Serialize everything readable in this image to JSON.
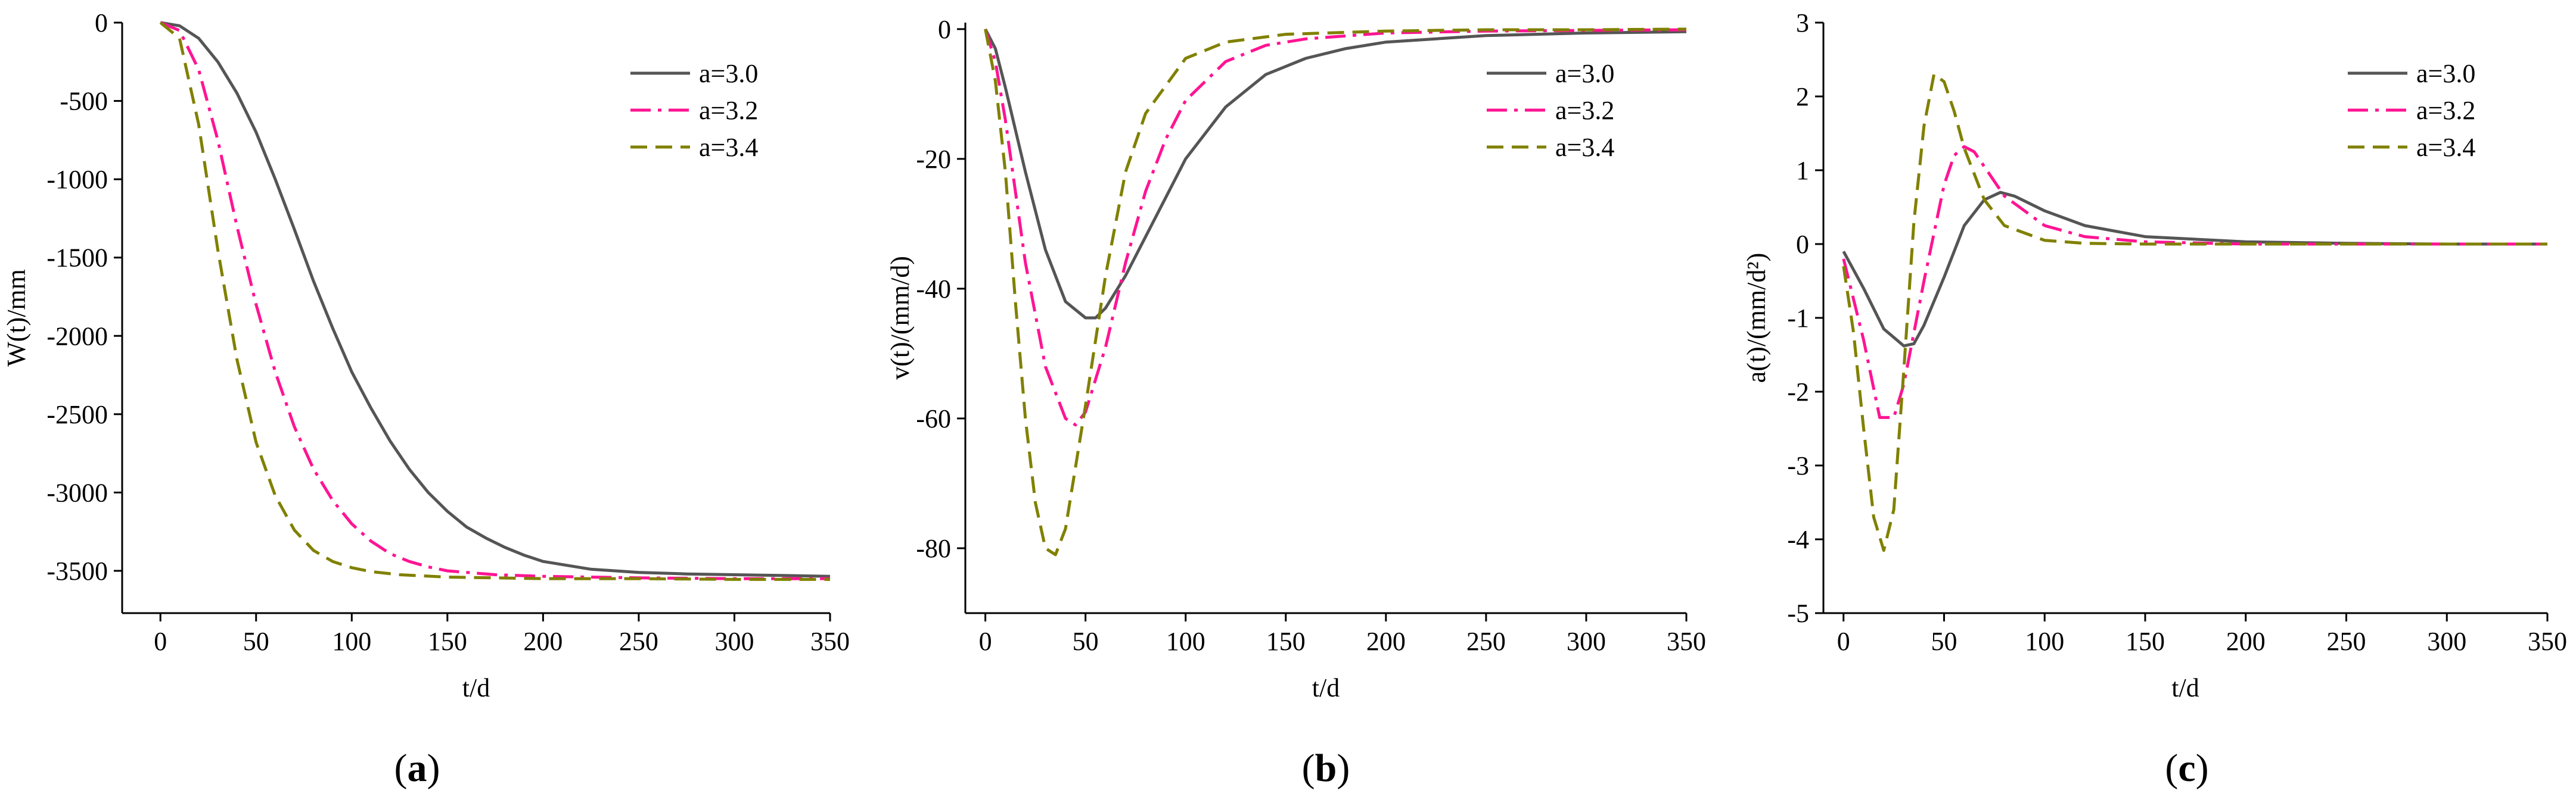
{
  "chart_data": [
    {
      "panel": "a",
      "type": "line",
      "caption_letter": "a",
      "xlabel": "t/d",
      "ylabel": "W(t)/mm",
      "xlim": [
        -20,
        350
      ],
      "ylim": [
        -3770,
        0
      ],
      "xticks": [
        0,
        50,
        100,
        150,
        200,
        250,
        300,
        350
      ],
      "yticks": [
        0,
        -500,
        -1000,
        -1500,
        -2000,
        -2500,
        -3000,
        -3500
      ],
      "legend": [
        "a=3.0",
        "a=3.2",
        "a=3.4"
      ],
      "legend_position": "top-right",
      "grid": false,
      "series": [
        {
          "name": "a=3.0",
          "x": [
            0,
            10,
            20,
            30,
            40,
            50,
            60,
            70,
            80,
            90,
            100,
            110,
            120,
            130,
            140,
            150,
            160,
            170,
            180,
            190,
            200,
            225,
            250,
            275,
            300,
            325,
            350
          ],
          "y": [
            0,
            -20,
            -100,
            -250,
            -450,
            -700,
            -1000,
            -1320,
            -1650,
            -1950,
            -2230,
            -2460,
            -2670,
            -2850,
            -3000,
            -3120,
            -3220,
            -3290,
            -3350,
            -3400,
            -3440,
            -3490,
            -3510,
            -3520,
            -3525,
            -3530,
            -3535
          ]
        },
        {
          "name": "a=3.2",
          "x": [
            0,
            10,
            20,
            30,
            40,
            50,
            60,
            70,
            80,
            90,
            100,
            110,
            120,
            130,
            140,
            150,
            175,
            200,
            250,
            300,
            350
          ],
          "y": [
            0,
            -50,
            -300,
            -750,
            -1300,
            -1800,
            -2230,
            -2580,
            -2850,
            -3050,
            -3200,
            -3310,
            -3390,
            -3440,
            -3475,
            -3500,
            -3525,
            -3535,
            -3545,
            -3550,
            -3550
          ]
        },
        {
          "name": "a=3.4",
          "x": [
            0,
            10,
            20,
            30,
            40,
            50,
            60,
            70,
            80,
            90,
            100,
            110,
            125,
            150,
            200,
            250,
            300,
            350
          ],
          "y": [
            0,
            -100,
            -650,
            -1450,
            -2150,
            -2680,
            -3020,
            -3240,
            -3370,
            -3440,
            -3480,
            -3505,
            -3525,
            -3540,
            -3550,
            -3550,
            -3555,
            -3555
          ]
        }
      ]
    },
    {
      "panel": "b",
      "type": "line",
      "caption_letter": "b",
      "xlabel": "t/d",
      "ylabel": "v(t)/(mm/d)",
      "xlim": [
        -10,
        350
      ],
      "ylim": [
        -90,
        1
      ],
      "xticks": [
        0,
        50,
        100,
        150,
        200,
        250,
        300,
        350
      ],
      "yticks": [
        0,
        -20,
        -40,
        -60,
        -80
      ],
      "legend": [
        "a=3.0",
        "a=3.2",
        "a=3.4"
      ],
      "legend_position": "top-right",
      "grid": false,
      "series": [
        {
          "name": "a=3.0",
          "x": [
            0,
            5,
            10,
            20,
            30,
            40,
            50,
            55,
            60,
            70,
            80,
            90,
            100,
            120,
            140,
            160,
            180,
            200,
            250,
            300,
            350
          ],
          "y": [
            0,
            -3,
            -9,
            -22,
            -34,
            -42,
            -44.5,
            -44.5,
            -43,
            -38,
            -32,
            -26,
            -20,
            -12,
            -7,
            -4.5,
            -3,
            -2,
            -1,
            -0.6,
            -0.4
          ]
        },
        {
          "name": "a=3.2",
          "x": [
            0,
            5,
            10,
            20,
            30,
            40,
            45,
            50,
            60,
            70,
            80,
            90,
            100,
            120,
            140,
            160,
            200,
            250,
            300,
            350
          ],
          "y": [
            0,
            -5,
            -14,
            -36,
            -52,
            -60,
            -61,
            -59,
            -49,
            -36,
            -25,
            -17,
            -11,
            -5,
            -2.5,
            -1.5,
            -0.6,
            -0.3,
            -0.2,
            -0.1
          ]
        },
        {
          "name": "a=3.4",
          "x": [
            0,
            5,
            10,
            15,
            20,
            25,
            30,
            35,
            40,
            50,
            60,
            70,
            80,
            100,
            120,
            150,
            200,
            250,
            300,
            350
          ],
          "y": [
            0,
            -8,
            -22,
            -42,
            -60,
            -73,
            -80,
            -81,
            -77,
            -58,
            -38,
            -22,
            -13,
            -4.5,
            -2,
            -0.8,
            -0.3,
            -0.1,
            -0.1,
            0
          ]
        }
      ]
    },
    {
      "panel": "c",
      "type": "line",
      "caption_letter": "c",
      "xlabel": "t/d",
      "ylabel": "a(t)/(mm/d²)",
      "xlim": [
        -10,
        350
      ],
      "ylim": [
        -5,
        3
      ],
      "xticks": [
        0,
        50,
        100,
        150,
        200,
        250,
        300,
        350
      ],
      "yticks": [
        3,
        2,
        1,
        0,
        -1,
        -2,
        -3,
        -4,
        -5
      ],
      "legend": [
        "a=3.0",
        "a=3.2",
        "a=3.4"
      ],
      "legend_position": "top-right",
      "grid": false,
      "series": [
        {
          "name": "a=3.0",
          "x": [
            0,
            10,
            20,
            30,
            35,
            40,
            50,
            60,
            70,
            78,
            85,
            100,
            120,
            150,
            200,
            250,
            300,
            350
          ],
          "y": [
            -0.1,
            -0.6,
            -1.15,
            -1.38,
            -1.35,
            -1.1,
            -0.45,
            0.25,
            0.6,
            0.7,
            0.65,
            0.45,
            0.25,
            0.1,
            0.03,
            0.01,
            0,
            0
          ]
        },
        {
          "name": "a=3.2",
          "x": [
            0,
            10,
            18,
            25,
            30,
            40,
            50,
            55,
            60,
            65,
            70,
            80,
            100,
            120,
            150,
            200,
            250,
            300,
            350
          ],
          "y": [
            -0.2,
            -1.3,
            -2.35,
            -2.35,
            -1.9,
            -0.5,
            0.8,
            1.2,
            1.32,
            1.25,
            1.05,
            0.65,
            0.25,
            0.1,
            0.03,
            0,
            0,
            0,
            0
          ]
        },
        {
          "name": "a=3.4",
          "x": [
            0,
            5,
            10,
            15,
            20,
            25,
            30,
            35,
            40,
            45,
            50,
            55,
            60,
            70,
            80,
            100,
            120,
            150,
            200,
            250,
            300,
            350
          ],
          "y": [
            -0.3,
            -1.2,
            -2.5,
            -3.7,
            -4.15,
            -3.6,
            -1.7,
            0.3,
            1.6,
            2.3,
            2.2,
            1.8,
            1.3,
            0.6,
            0.25,
            0.05,
            0.01,
            0,
            0,
            0,
            0,
            0
          ]
        }
      ]
    }
  ],
  "styles": {
    "a=3.0": {
      "color": "#555555",
      "dash": "solid"
    },
    "a=3.2": {
      "color": "#ff1493",
      "dash": "dashdot"
    },
    "a=3.4": {
      "color": "#808000",
      "dash": "dashed"
    }
  }
}
